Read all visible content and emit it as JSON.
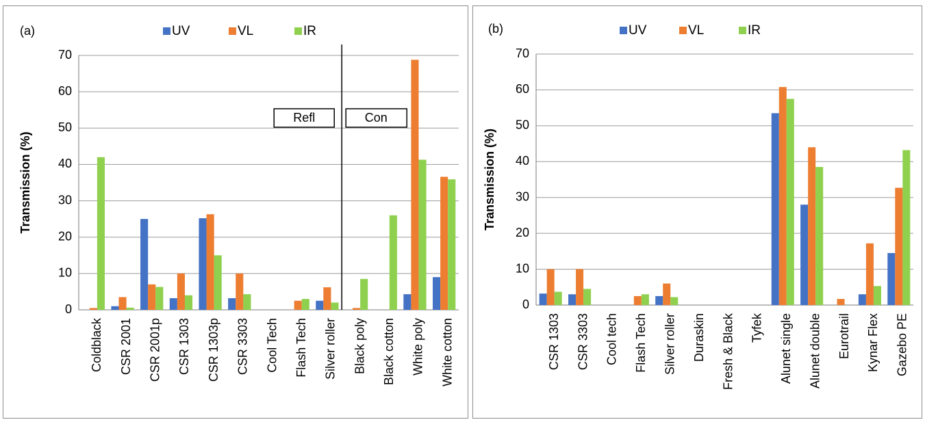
{
  "colors": {
    "UV": "#4472c4",
    "VL": "#ed7d31",
    "IR": "#8fd14f"
  },
  "chart_data": [
    {
      "type": "bar",
      "panel_label": "(a)",
      "ylabel": "Transmission (%)",
      "ylim": [
        0,
        70
      ],
      "yticks": [
        0,
        10,
        20,
        30,
        40,
        50,
        60,
        70
      ],
      "grid": true,
      "legend_position": "top",
      "categories": [
        "Coldblack",
        "CSR 2001",
        "CSR 2001p",
        "CSR 1303",
        "CSR 1303p",
        "CSR 3303",
        "Cool Tech",
        "Flash Tech",
        "Silver roller",
        "Black poly",
        "Black cotton",
        "White poly",
        "White cotton"
      ],
      "series": [
        {
          "name": "UV",
          "values": [
            0,
            1,
            25,
            3.2,
            25.2,
            3.2,
            0,
            0,
            2.5,
            0,
            0,
            4.3,
            9
          ]
        },
        {
          "name": "VL",
          "values": [
            0.5,
            3.5,
            7,
            10,
            26.3,
            10,
            0,
            2.5,
            6.2,
            0.5,
            0,
            68.8,
            36.6
          ]
        },
        {
          "name": "IR",
          "values": [
            42,
            0.6,
            6.3,
            4,
            15,
            4.3,
            0,
            3,
            2,
            8.5,
            26,
            41.3,
            35.9
          ]
        }
      ],
      "annotations": [
        "Refl",
        "Con"
      ],
      "divider_after_category": "Silver roller"
    },
    {
      "type": "bar",
      "panel_label": "(b)",
      "ylabel": "Transmission (%)",
      "ylim": [
        0,
        70
      ],
      "yticks": [
        0,
        10,
        20,
        30,
        40,
        50,
        60,
        70
      ],
      "grid": true,
      "legend_position": "top",
      "categories": [
        "CSR 1303",
        "CSR 3303",
        "Cool tech",
        "Flash Tech",
        "Silver roller",
        "Duraskin",
        "Fresh & Black",
        "Tyfek",
        "Alunet single",
        "Alunet double",
        "Eurotrail",
        "Kynar Flex",
        "Gazebo PE"
      ],
      "series": [
        {
          "name": "UV",
          "values": [
            3.2,
            3,
            0,
            0,
            2.5,
            0,
            0,
            0,
            53.5,
            28,
            0,
            3,
            14.5
          ]
        },
        {
          "name": "VL",
          "values": [
            10,
            10,
            0,
            2.5,
            6,
            0,
            0,
            0,
            60.8,
            44,
            1.7,
            17.2,
            32.7
          ]
        },
        {
          "name": "IR",
          "values": [
            3.7,
            4.5,
            0,
            3,
            2.2,
            0,
            0,
            0,
            57.5,
            38.5,
            0,
            5.3,
            43.2
          ]
        }
      ]
    }
  ]
}
